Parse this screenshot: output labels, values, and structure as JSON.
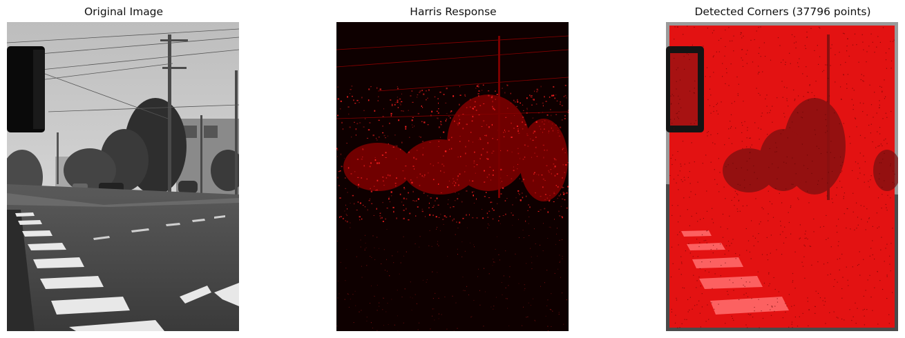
{
  "figure": {
    "panels": [
      {
        "title": "Original Image"
      },
      {
        "title": "Harris Response"
      },
      {
        "title": "Detected Corners (37796 points)"
      }
    ]
  },
  "colors": {
    "background": "#ffffff",
    "response_dark": "#0e0000",
    "corner_marker": "#ff0000"
  }
}
